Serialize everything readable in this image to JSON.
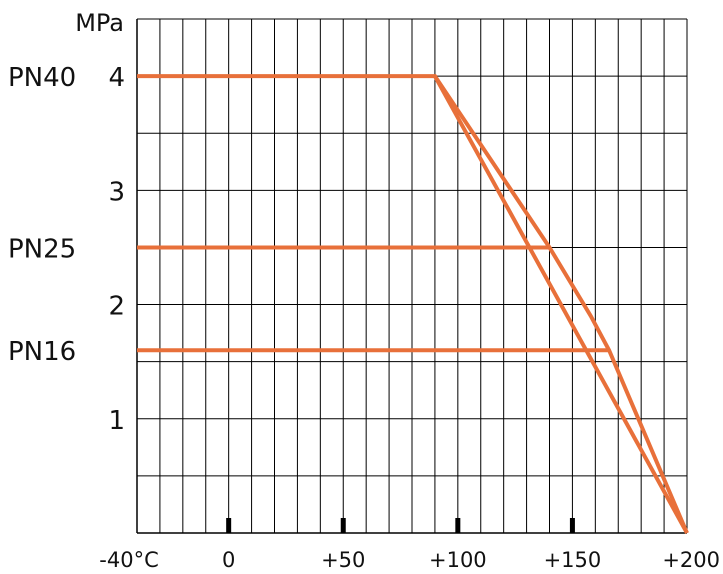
{
  "chart_data": {
    "type": "line",
    "title": "",
    "ylabel": "MPa",
    "xlabel": "",
    "xlim": [
      -40,
      200
    ],
    "ylim": [
      0,
      4.5
    ],
    "grid": true,
    "x_tick_labels": [
      {
        "value": -40,
        "label": "-40°C"
      },
      {
        "value": 0,
        "label": "0"
      },
      {
        "value": 50,
        "label": "+50"
      },
      {
        "value": 100,
        "label": "+100"
      },
      {
        "value": 150,
        "label": "+150"
      },
      {
        "value": 200,
        "label": "+200"
      }
    ],
    "y_tick_labels": [
      {
        "value": 1,
        "label": "1"
      },
      {
        "value": 2,
        "label": "2"
      },
      {
        "value": 3,
        "label": "3"
      },
      {
        "value": 4,
        "label": "4"
      }
    ],
    "pn_labels": [
      {
        "value": 4.0,
        "label": "PN40"
      },
      {
        "value": 2.5,
        "label": "PN25"
      },
      {
        "value": 1.6,
        "label": "PN16"
      }
    ],
    "series": [
      {
        "x": [
          -40,
          90,
          200
        ],
        "y": [
          4.0,
          4.0,
          0
        ]
      },
      {
        "x": [
          -40,
          140
        ],
        "y": [
          2.5,
          2.5
        ]
      },
      {
        "x": [
          -40,
          166
        ],
        "y": [
          1.6,
          1.6
        ]
      }
    ],
    "envelope": {
      "x": [
        90,
        140,
        158,
        166,
        200
      ],
      "y": [
        4.0,
        2.5,
        1.9,
        1.6,
        0
      ]
    },
    "markers_x": [
      0,
      50,
      100,
      150
    ],
    "colors": {
      "line": "#E8703A",
      "grid": "#000000",
      "text": "#111111"
    }
  }
}
